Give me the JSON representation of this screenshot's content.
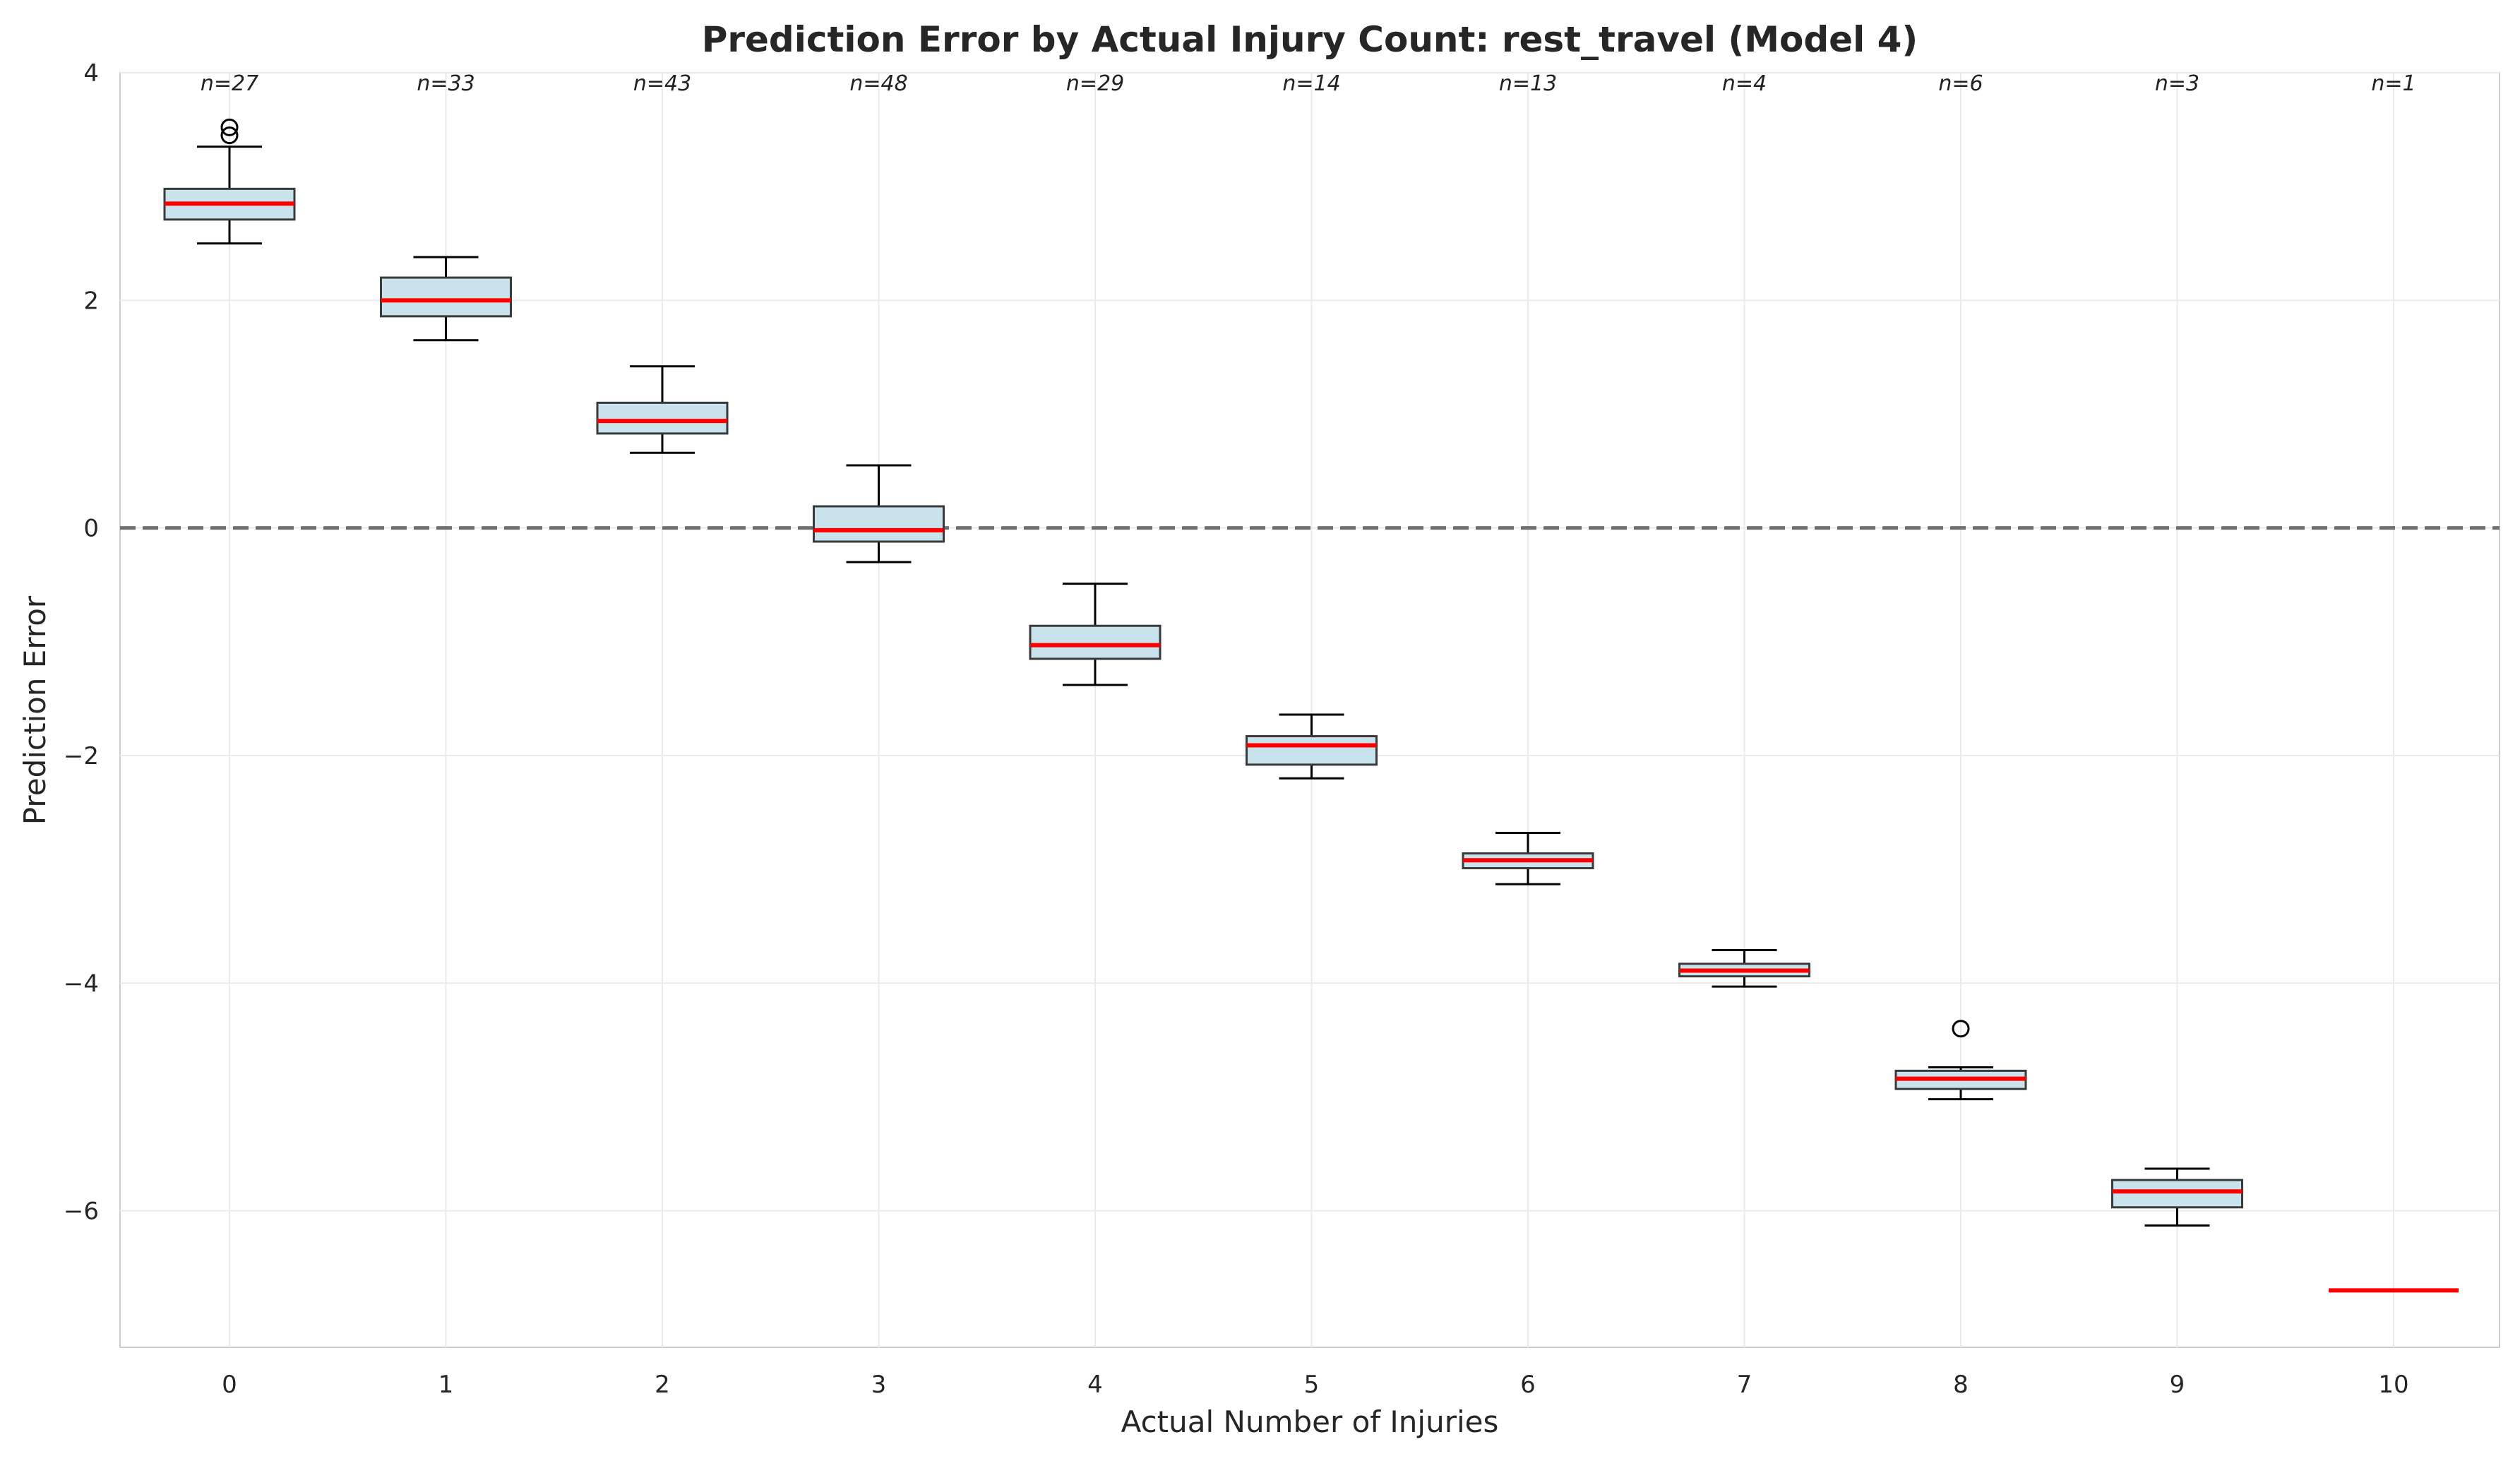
{
  "chart_data": {
    "type": "box",
    "title": "Prediction Error by Actual Injury Count: rest_travel (Model 4)",
    "xlabel": "Actual Number of Injuries",
    "ylabel": "Prediction Error",
    "categories": [
      "0",
      "1",
      "2",
      "3",
      "4",
      "5",
      "6",
      "7",
      "8",
      "9",
      "10"
    ],
    "ylim": [
      -7.2,
      4.0
    ],
    "yticks": [
      4,
      2,
      0,
      -2,
      -4,
      -6
    ],
    "ytick_labels": [
      "4",
      "2",
      "0",
      "−2",
      "−4",
      "−6"
    ],
    "grid": true,
    "reference_line": {
      "y": 0,
      "style": "dashed",
      "color": "#707070"
    },
    "colors": {
      "box_fill": "#c9e3ec",
      "box_edge": "#3a3a3a",
      "median": "#ff0000",
      "whisker": "#000000"
    },
    "sample_counts": [
      "n=27",
      "n=33",
      "n=43",
      "n=48",
      "n=29",
      "n=14",
      "n=13",
      "n=4",
      "n=6",
      "n=3",
      "n=1"
    ],
    "boxes": [
      {
        "x": "0",
        "whislo": 2.5,
        "q1": 2.71,
        "med": 2.85,
        "q3": 2.98,
        "whishi": 3.35,
        "fliers": [
          3.45,
          3.52
        ]
      },
      {
        "x": "1",
        "whislo": 1.65,
        "q1": 1.86,
        "med": 2.0,
        "q3": 2.2,
        "whishi": 2.38,
        "fliers": []
      },
      {
        "x": "2",
        "whislo": 0.66,
        "q1": 0.83,
        "med": 0.94,
        "q3": 1.1,
        "whishi": 1.42,
        "fliers": []
      },
      {
        "x": "3",
        "whislo": -0.3,
        "q1": -0.12,
        "med": -0.02,
        "q3": 0.19,
        "whishi": 0.55,
        "fliers": []
      },
      {
        "x": "4",
        "whislo": -1.38,
        "q1": -1.15,
        "med": -1.03,
        "q3": -0.86,
        "whishi": -0.49,
        "fliers": []
      },
      {
        "x": "5",
        "whislo": -2.2,
        "q1": -2.08,
        "med": -1.91,
        "q3": -1.83,
        "whishi": -1.64,
        "fliers": []
      },
      {
        "x": "6",
        "whislo": -3.13,
        "q1": -2.99,
        "med": -2.92,
        "q3": -2.86,
        "whishi": -2.68,
        "fliers": []
      },
      {
        "x": "7",
        "whislo": -4.03,
        "q1": -3.94,
        "med": -3.89,
        "q3": -3.83,
        "whishi": -3.71,
        "fliers": []
      },
      {
        "x": "8",
        "whislo": -5.02,
        "q1": -4.93,
        "med": -4.84,
        "q3": -4.77,
        "whishi": -4.74,
        "fliers": [
          -4.4
        ]
      },
      {
        "x": "9",
        "whislo": -6.13,
        "q1": -5.97,
        "med": -5.83,
        "q3": -5.73,
        "whishi": -5.63,
        "fliers": []
      },
      {
        "x": "10",
        "whislo": -6.7,
        "q1": -6.7,
        "med": -6.7,
        "q3": -6.7,
        "whishi": -6.7,
        "fliers": []
      }
    ]
  }
}
